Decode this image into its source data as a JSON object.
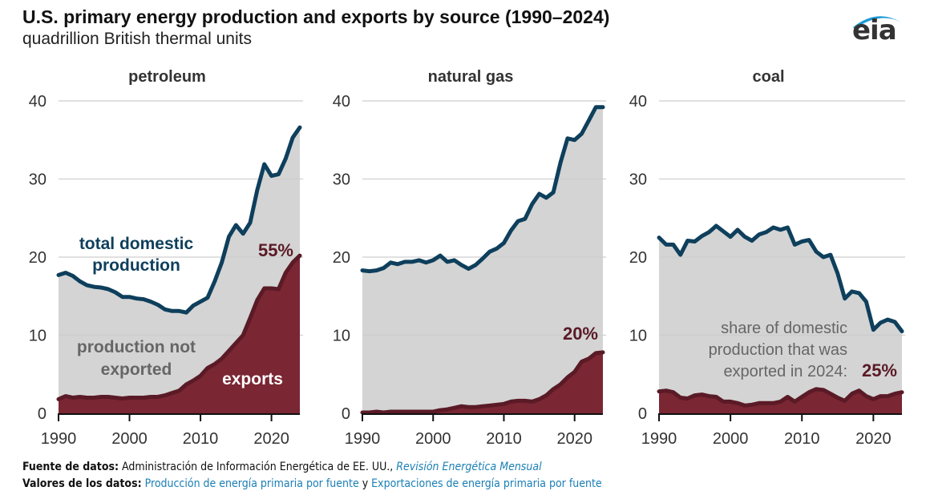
{
  "header": {
    "title": "U.S. primary energy production and exports by source (1990–2024)",
    "subtitle": "quadrillion British thermal units",
    "logo_text": "eia",
    "logo_icon": "eia-swoosh-icon"
  },
  "colors": {
    "production_line": "#0e3f5c",
    "production_fill": "#d4d4d4",
    "exports_fill": "#7a2633",
    "exports_line": "#5a1a26",
    "grid": "#cccccc",
    "link": "#1a7fb5"
  },
  "chart_data": [
    {
      "type": "area",
      "title": "petroleum",
      "xlabel": "",
      "ylabel": "",
      "x": [
        1990,
        1991,
        1992,
        1993,
        1994,
        1995,
        1996,
        1997,
        1998,
        1999,
        2000,
        2001,
        2002,
        2003,
        2004,
        2005,
        2006,
        2007,
        2008,
        2009,
        2010,
        2011,
        2012,
        2013,
        2014,
        2015,
        2016,
        2017,
        2018,
        2019,
        2020,
        2021,
        2022,
        2023,
        2024
      ],
      "xticks": [
        "1990",
        "2000",
        "2010",
        "2020"
      ],
      "yticks": [
        "0",
        "10",
        "20",
        "30",
        "40"
      ],
      "ylim": [
        0,
        40
      ],
      "xlim": [
        1990,
        2024
      ],
      "grid": true,
      "series": [
        {
          "name": "total domestic production",
          "values": [
            17.7,
            18.0,
            17.6,
            16.9,
            16.4,
            16.2,
            16.1,
            15.9,
            15.5,
            14.9,
            14.9,
            14.7,
            14.6,
            14.3,
            13.9,
            13.3,
            13.1,
            13.1,
            12.9,
            13.8,
            14.3,
            14.8,
            16.9,
            19.3,
            22.6,
            24.1,
            23.0,
            24.4,
            28.6,
            31.9,
            30.4,
            30.6,
            32.6,
            35.3,
            36.6
          ]
        },
        {
          "name": "exports",
          "values": [
            1.8,
            2.2,
            2.0,
            2.1,
            2.0,
            2.0,
            2.1,
            2.1,
            2.0,
            1.9,
            2.0,
            2.0,
            2.0,
            2.1,
            2.1,
            2.3,
            2.6,
            2.9,
            3.7,
            4.2,
            4.8,
            5.8,
            6.3,
            7.0,
            8.0,
            9.0,
            10.0,
            12.2,
            14.5,
            16.0,
            16.0,
            15.9,
            18.0,
            19.3,
            20.2
          ]
        }
      ],
      "annotations": [
        {
          "text": "total domestic production",
          "target": "total domestic production"
        },
        {
          "text": "production not exported",
          "target": "area between"
        },
        {
          "text": "exports",
          "target": "exports"
        },
        {
          "text": "55%",
          "target": "share exported in 2024"
        }
      ]
    },
    {
      "type": "area",
      "title": "natural gas",
      "xlabel": "",
      "ylabel": "",
      "x": [
        1990,
        1991,
        1992,
        1993,
        1994,
        1995,
        1996,
        1997,
        1998,
        1999,
        2000,
        2001,
        2002,
        2003,
        2004,
        2005,
        2006,
        2007,
        2008,
        2009,
        2010,
        2011,
        2012,
        2013,
        2014,
        2015,
        2016,
        2017,
        2018,
        2019,
        2020,
        2021,
        2022,
        2023,
        2024
      ],
      "xticks": [
        "1990",
        "2000",
        "2010",
        "2020"
      ],
      "yticks": [
        "0",
        "10",
        "20",
        "30",
        "40"
      ],
      "ylim": [
        0,
        40
      ],
      "xlim": [
        1990,
        2024
      ],
      "grid": true,
      "series": [
        {
          "name": "total domestic production",
          "values": [
            18.3,
            18.2,
            18.3,
            18.6,
            19.3,
            19.1,
            19.4,
            19.4,
            19.6,
            19.3,
            19.6,
            20.2,
            19.4,
            19.6,
            19.0,
            18.5,
            19.0,
            19.8,
            20.7,
            21.1,
            21.8,
            23.4,
            24.6,
            24.9,
            26.8,
            28.1,
            27.6,
            28.3,
            32.1,
            35.2,
            35.0,
            35.8,
            37.5,
            39.2,
            39.2
          ]
        },
        {
          "name": "exports",
          "values": [
            0.1,
            0.1,
            0.2,
            0.1,
            0.2,
            0.2,
            0.2,
            0.2,
            0.2,
            0.2,
            0.2,
            0.4,
            0.5,
            0.7,
            0.9,
            0.8,
            0.8,
            0.9,
            1.0,
            1.1,
            1.2,
            1.5,
            1.6,
            1.6,
            1.5,
            1.8,
            2.3,
            3.1,
            3.7,
            4.6,
            5.3,
            6.6,
            7.0,
            7.7,
            7.8
          ]
        }
      ],
      "annotations": [
        {
          "text": "20%",
          "target": "share exported in 2024"
        }
      ]
    },
    {
      "type": "area",
      "title": "coal",
      "xlabel": "",
      "ylabel": "",
      "x": [
        1990,
        1991,
        1992,
        1993,
        1994,
        1995,
        1996,
        1997,
        1998,
        1999,
        2000,
        2001,
        2002,
        2003,
        2004,
        2005,
        2006,
        2007,
        2008,
        2009,
        2010,
        2011,
        2012,
        2013,
        2014,
        2015,
        2016,
        2017,
        2018,
        2019,
        2020,
        2021,
        2022,
        2023,
        2024
      ],
      "xticks": [
        "1990",
        "2000",
        "2010",
        "2020"
      ],
      "yticks": [
        "0",
        "10",
        "20",
        "30",
        "40"
      ],
      "ylim": [
        0,
        40
      ],
      "xlim": [
        1990,
        2024
      ],
      "grid": true,
      "series": [
        {
          "name": "total domestic production",
          "values": [
            22.5,
            21.6,
            21.6,
            20.3,
            22.1,
            22.0,
            22.7,
            23.2,
            24.0,
            23.3,
            22.6,
            23.5,
            22.6,
            22.1,
            22.9,
            23.2,
            23.8,
            23.5,
            23.8,
            21.6,
            22.0,
            22.2,
            20.7,
            20.0,
            20.3,
            17.9,
            14.7,
            15.6,
            15.4,
            14.3,
            10.7,
            11.6,
            12.0,
            11.7,
            10.5
          ]
        },
        {
          "name": "exports",
          "values": [
            2.8,
            2.9,
            2.7,
            2.0,
            1.9,
            2.3,
            2.4,
            2.2,
            2.1,
            1.5,
            1.5,
            1.3,
            1.0,
            1.1,
            1.3,
            1.3,
            1.3,
            1.5,
            2.1,
            1.5,
            2.1,
            2.7,
            3.1,
            3.0,
            2.5,
            2.0,
            1.6,
            2.5,
            2.9,
            2.2,
            1.8,
            2.2,
            2.2,
            2.5,
            2.7
          ]
        }
      ],
      "annotations": [
        {
          "text": "share of domestic production that was exported in 2024:",
          "target": "note"
        },
        {
          "text": "25%",
          "target": "share exported in 2024"
        }
      ]
    }
  ],
  "labels": {
    "petroleum_production_line1": "total domestic",
    "petroleum_production_line2": "production",
    "petroleum_not_exported_line1": "production not",
    "petroleum_not_exported_line2": "exported",
    "petroleum_exports": "exports",
    "petroleum_pct": "55%",
    "gas_pct": "20%",
    "coal_note_line1": "share of domestic",
    "coal_note_line2": "production that was",
    "coal_note_line3": "exported in 2024:",
    "coal_pct": "25%"
  },
  "footer": {
    "source_label": "Fuente de datos:",
    "source_text": " Administración de Información Energética de EE. UU., ",
    "source_link": "Revisión Energética Mensual",
    "values_label": "Valores de los datos:",
    "values_link1": "Producción de energía primaria por fuente",
    "values_sep": " y ",
    "values_link2": "Exportaciones de energía primaria por fuente"
  }
}
